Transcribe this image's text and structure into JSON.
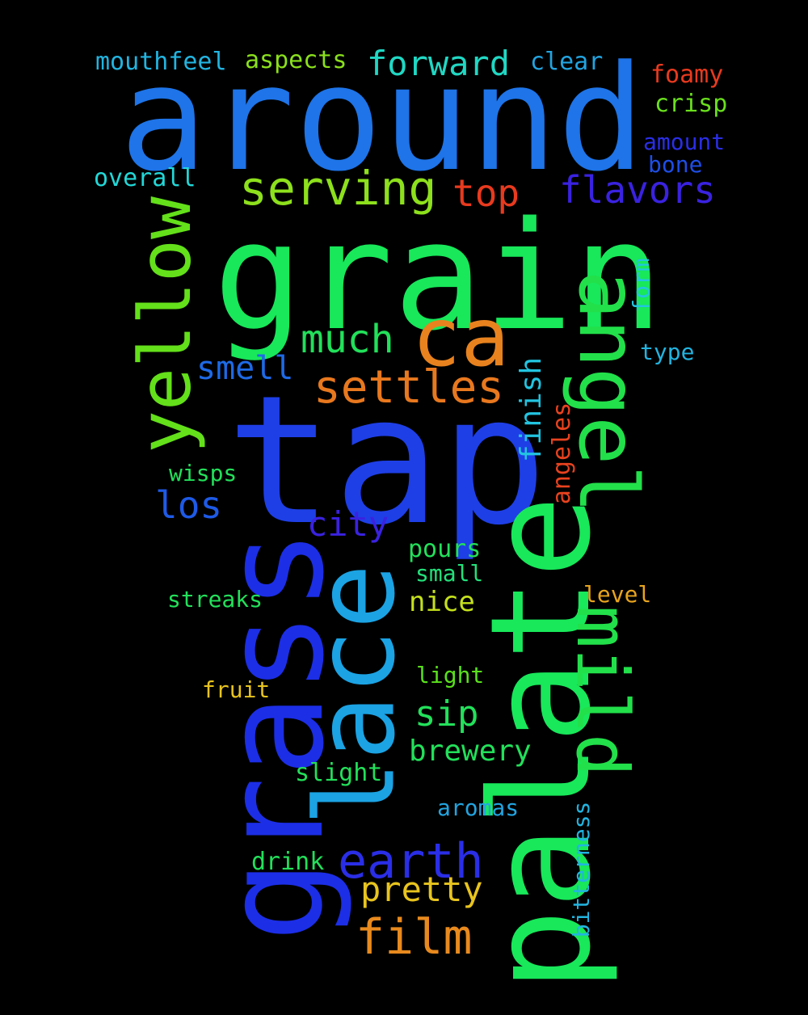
{
  "words": [
    {
      "text": "around",
      "color": "#1e74e8",
      "rot": 0
    },
    {
      "text": "grain",
      "color": "#18e85a",
      "rot": 0
    },
    {
      "text": "tap",
      "color": "#1e3fe6",
      "rot": 0
    },
    {
      "text": "grass",
      "color": "#1c2ee6",
      "rot": -90
    },
    {
      "text": "palate",
      "color": "#18e85a",
      "rot": -90
    },
    {
      "text": "lace",
      "color": "#1ba3e4",
      "rot": -90
    },
    {
      "text": "angel",
      "color": "#22e04a",
      "rot": 90
    },
    {
      "text": "mild",
      "color": "#22e04a",
      "rot": 90
    },
    {
      "text": "yellow",
      "color": "#63e01a",
      "rot": -90
    },
    {
      "text": "ca",
      "color": "#e8821e",
      "rot": 0
    },
    {
      "text": "serving",
      "color": "#8de01c",
      "rot": 0
    },
    {
      "text": "settles",
      "color": "#e8781e",
      "rot": 0
    },
    {
      "text": "flavors",
      "color": "#3a22e0",
      "rot": 0
    },
    {
      "text": "top",
      "color": "#e83a1e",
      "rot": 0
    },
    {
      "text": "much",
      "color": "#22e05a",
      "rot": 0
    },
    {
      "text": "earth",
      "color": "#2a2ee6",
      "rot": 0
    },
    {
      "text": "film",
      "color": "#e88a1e",
      "rot": 0
    },
    {
      "text": "forward",
      "color": "#20d8c4",
      "rot": 0
    },
    {
      "text": "smell",
      "color": "#1e6ae6",
      "rot": 0
    },
    {
      "text": "los",
      "color": "#1e5ae6",
      "rot": 0
    },
    {
      "text": "city",
      "color": "#3a22e0",
      "rot": 0
    },
    {
      "text": "sip",
      "color": "#22e05a",
      "rot": 0
    },
    {
      "text": "pretty",
      "color": "#e8c41e",
      "rot": 0
    },
    {
      "text": "brewery",
      "color": "#22e05a",
      "rot": 0
    },
    {
      "text": "finish",
      "color": "#22c4e0",
      "rot": -90
    },
    {
      "text": "angeles",
      "color": "#e8421e",
      "rot": -90
    },
    {
      "text": "bitterness",
      "color": "#22b4e0",
      "rot": -90
    },
    {
      "text": "mouthfeel",
      "color": "#22b4e0",
      "rot": 0
    },
    {
      "text": "aspects",
      "color": "#8ae01c",
      "rot": 0
    },
    {
      "text": "clear",
      "color": "#22a4e0",
      "rot": 0
    },
    {
      "text": "foamy",
      "color": "#e83a1e",
      "rot": 0
    },
    {
      "text": "crisp",
      "color": "#6ae01c",
      "rot": 0
    },
    {
      "text": "amount",
      "color": "#2a2ee6",
      "rot": 0
    },
    {
      "text": "bone",
      "color": "#1e4ee6",
      "rot": 0
    },
    {
      "text": "overall",
      "color": "#22d8d8",
      "rot": 0
    },
    {
      "text": "form",
      "color": "#22c4e0",
      "rot": -90
    },
    {
      "text": "type",
      "color": "#22b4e0",
      "rot": 0
    },
    {
      "text": "wisps",
      "color": "#22e05a",
      "rot": 0
    },
    {
      "text": "pours",
      "color": "#22e05a",
      "rot": 0
    },
    {
      "text": "small",
      "color": "#22e07a",
      "rot": 0
    },
    {
      "text": "streaks",
      "color": "#22e05a",
      "rot": 0
    },
    {
      "text": "nice",
      "color": "#c4e01c",
      "rot": 0
    },
    {
      "text": "level",
      "color": "#e8a41e",
      "rot": 0
    },
    {
      "text": "light",
      "color": "#5ae01c",
      "rot": 0
    },
    {
      "text": "fruit",
      "color": "#e8c41e",
      "rot": 0
    },
    {
      "text": "slight",
      "color": "#22e05a",
      "rot": 0
    },
    {
      "text": "aromas",
      "color": "#22a4e0",
      "rot": 0
    },
    {
      "text": "drink",
      "color": "#22e05a",
      "rot": 0
    }
  ]
}
